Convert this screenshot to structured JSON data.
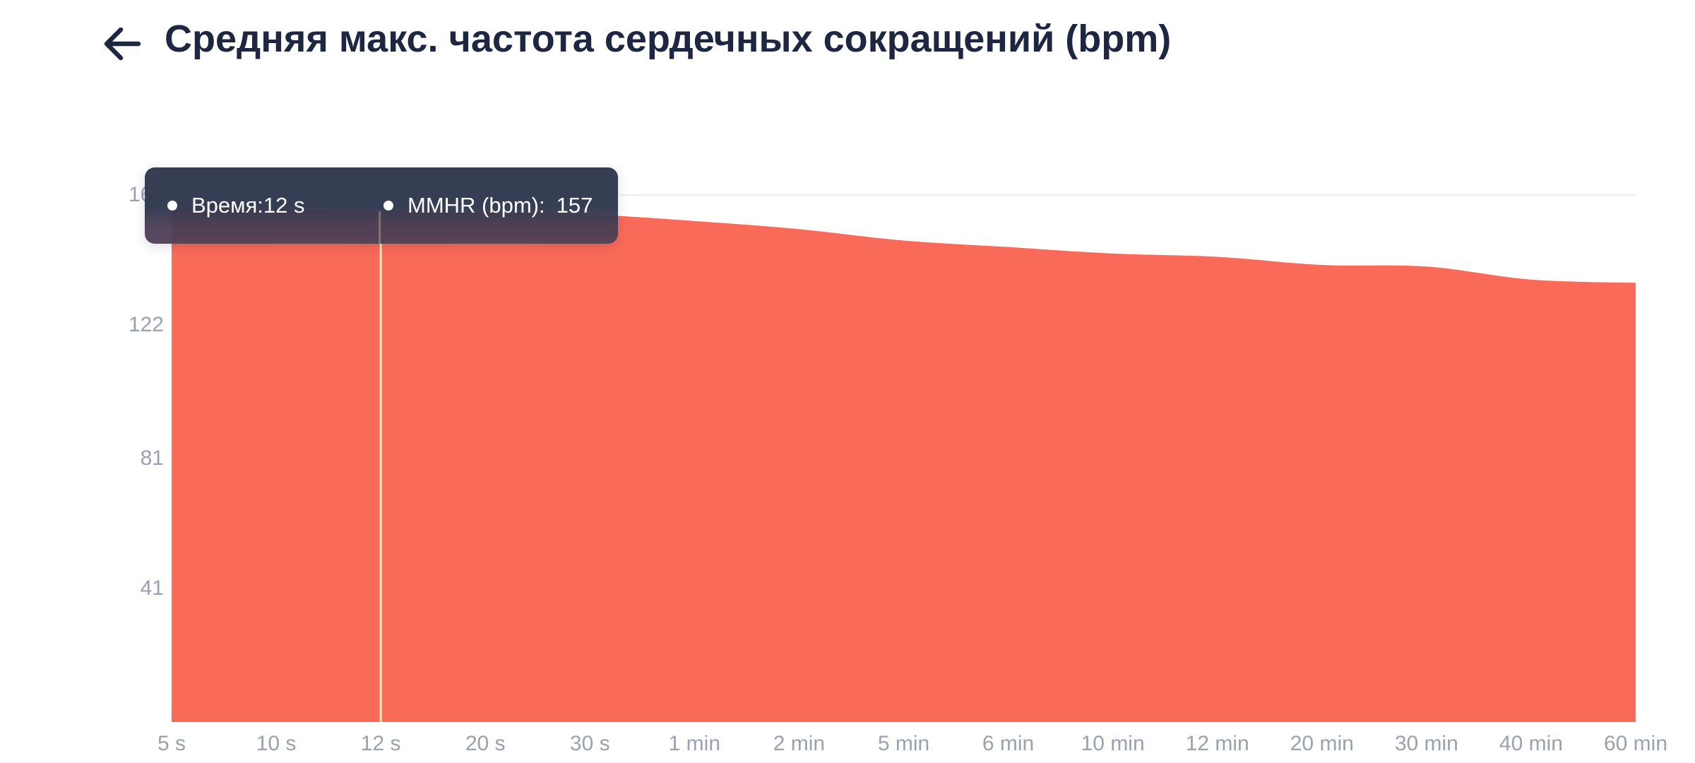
{
  "header": {
    "title": "Средняя макс. частота сердечных сокращений (bpm)"
  },
  "tooltip": {
    "items": [
      {
        "text": "Время:12 s"
      },
      {
        "label": "MMHR (bpm):",
        "value": "157"
      }
    ]
  },
  "chart_data": {
    "type": "area",
    "title": "Средняя макс. частота сердечных сокращений (bpm)",
    "xlabel": "Время",
    "ylabel": "MMHR (bpm)",
    "categories": [
      "5 s",
      "10 s",
      "12 s",
      "20 s",
      "30 s",
      "1 min",
      "2 min",
      "5 min",
      "6 min",
      "10 min",
      "12 min",
      "20 min",
      "30 min",
      "40 min",
      "60 min"
    ],
    "series": [
      {
        "name": "MMHR (bpm)",
        "values": [
          158,
          157.5,
          157,
          156.5,
          156,
          154,
          151.5,
          148,
          146,
          144,
          143,
          140.5,
          140,
          136,
          135
        ]
      }
    ],
    "y_ticks": [
      41,
      81,
      122,
      162
    ],
    "ylim": [
      0,
      162
    ],
    "grid": "horizontal-only",
    "legend_position": "none",
    "selected_point": {
      "category": "12 s",
      "value": 157
    }
  },
  "colors": {
    "area": "#FA6A58",
    "highlight_line": "#FFE6BE",
    "tooltip_bg": "#303850",
    "axis_label": "#9AA1AE",
    "gridline": "#EDF0F5",
    "title": "#1D2742"
  }
}
